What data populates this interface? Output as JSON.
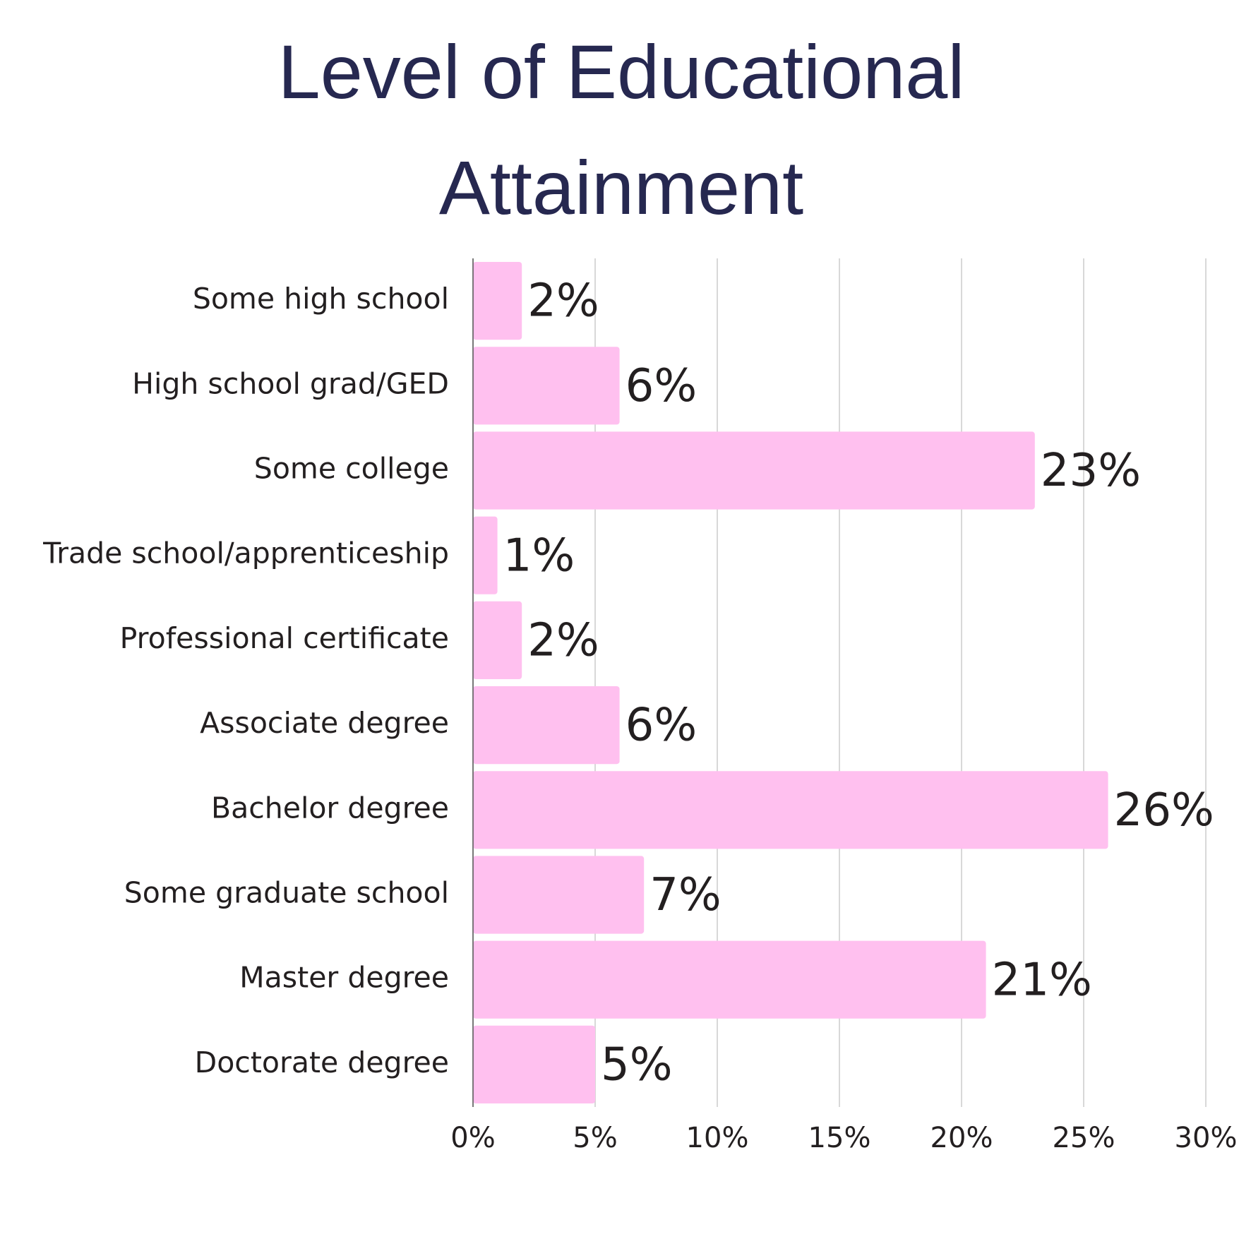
{
  "chart_data": {
    "type": "bar",
    "orientation": "horizontal",
    "title": "Level of Educational Attainment",
    "categories": [
      "Some high school",
      "High school grad/GED",
      "Some college",
      "Trade school/apprenticeship",
      "Professional certificate",
      "Associate degree",
      "Bachelor degree",
      "Some graduate school",
      "Master degree",
      "Doctorate degree"
    ],
    "values": [
      2,
      6,
      23,
      1,
      2,
      6,
      26,
      7,
      21,
      5
    ],
    "value_labels": [
      "2%",
      "6%",
      "23%",
      "1%",
      "2%",
      "6%",
      "26%",
      "7%",
      "21%",
      "5%"
    ],
    "color": "#ffc0ef",
    "xlim": [
      0,
      30
    ],
    "xticks": [
      {
        "value": 0,
        "label": "0%"
      },
      {
        "value": 5,
        "label": "5%"
      },
      {
        "value": 10,
        "label": "10%"
      },
      {
        "value": 15,
        "label": "15%"
      },
      {
        "value": 20,
        "label": "20%"
      },
      {
        "value": 25,
        "label": "25%"
      },
      {
        "value": 30,
        "label": "30%"
      }
    ],
    "grid": true
  }
}
